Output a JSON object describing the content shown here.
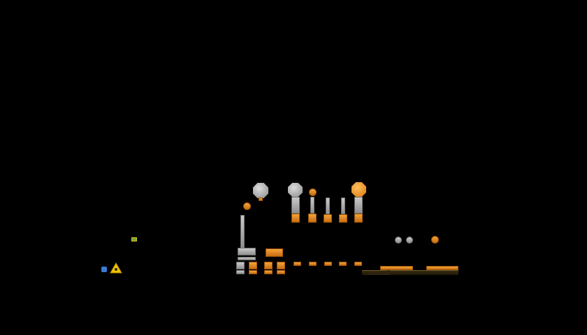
{
  "scene": {
    "name": "physics-puzzle-level",
    "background_color": "#000000"
  },
  "palette": {
    "wood": "#e8922b",
    "stone": "#b0b0b0",
    "ground": "#2e2410",
    "player_yellow": "#f2c200",
    "player_blue": "#3a7bd5"
  },
  "icons": {
    "player": "yellow-triangle-character-icon",
    "slingshot": "small-launcher-icon",
    "target": "floating-marker-icon"
  }
}
